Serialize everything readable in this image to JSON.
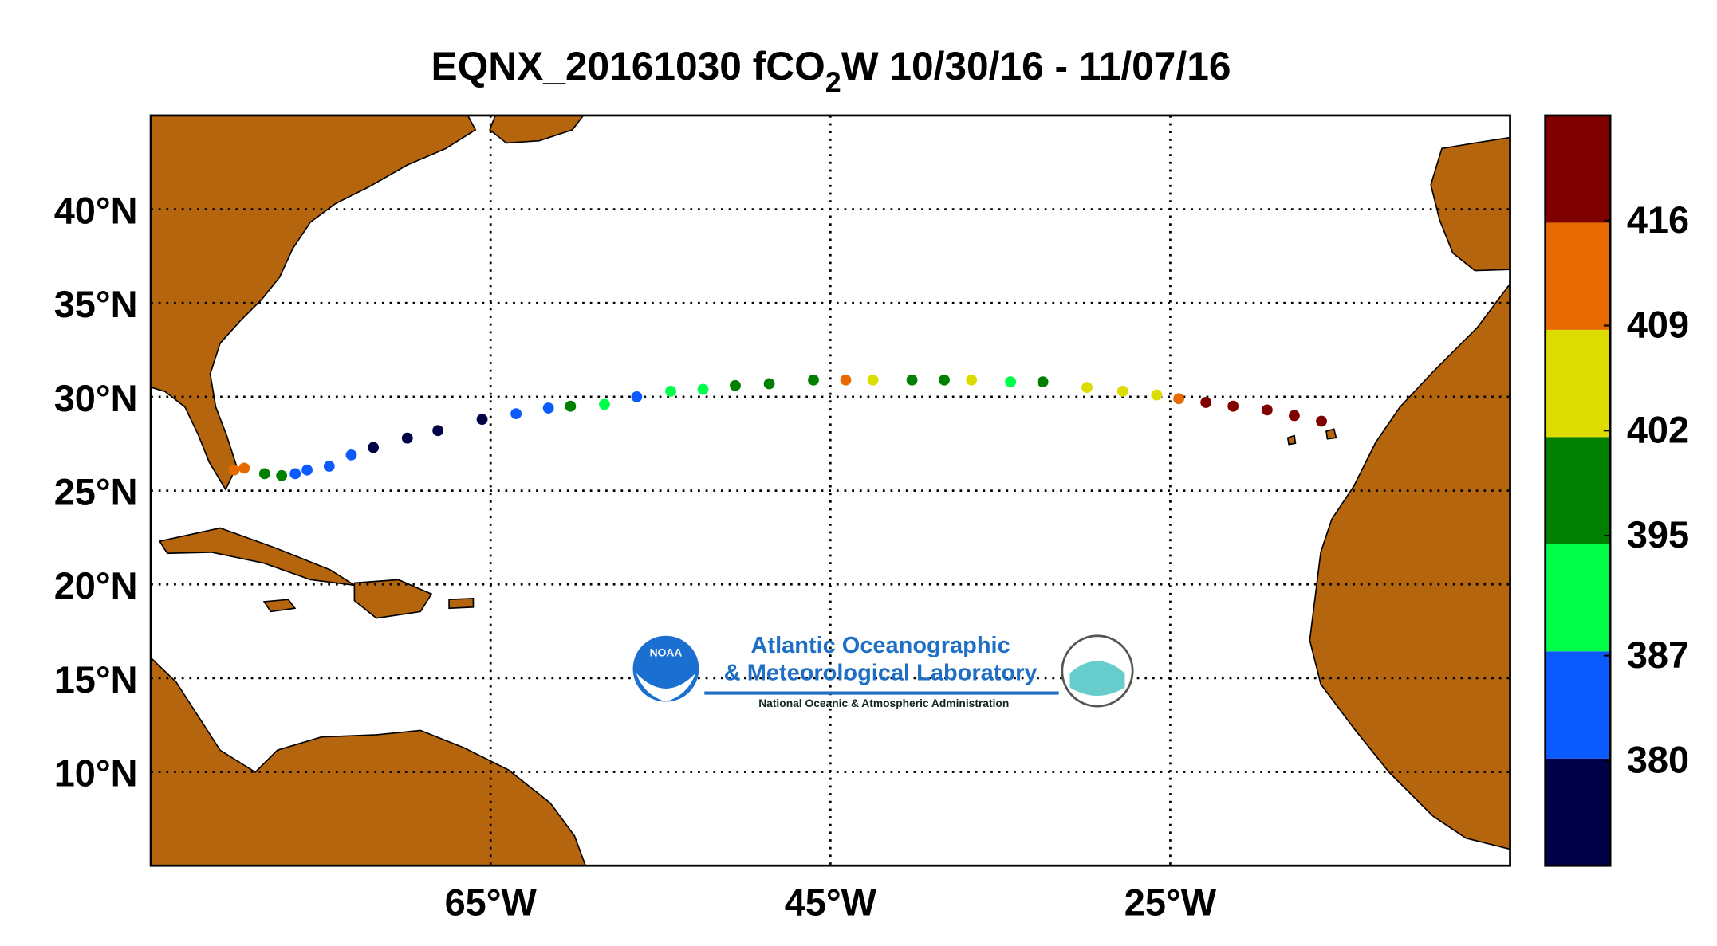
{
  "chart_data": {
    "type": "map",
    "title": {
      "prefix": "EQNX_20161030  fCO",
      "subscript": "2",
      "suffix": "W 10/30/16 - 11/07/16"
    },
    "xlim": [
      -85,
      -5
    ],
    "ylim": [
      5,
      45
    ],
    "xticks": [
      {
        "value": -65,
        "label": "65°W"
      },
      {
        "value": -45,
        "label": "45°W"
      },
      {
        "value": -25,
        "label": "25°W"
      }
    ],
    "yticks": [
      {
        "value": 10,
        "label": "10°N"
      },
      {
        "value": 15,
        "label": "15°N"
      },
      {
        "value": 20,
        "label": "20°N"
      },
      {
        "value": 25,
        "label": "25°N"
      },
      {
        "value": 30,
        "label": "30°N"
      },
      {
        "value": 35,
        "label": "35°N"
      },
      {
        "value": 40,
        "label": "40°N"
      }
    ],
    "grid": true,
    "land_color": "#b5650d",
    "lon": [
      -80.1,
      -79.5,
      -78.3,
      -77.3,
      -76.5,
      -75.8,
      -74.5,
      -73.2,
      -71.9,
      -69.9,
      -68.1,
      -65.5,
      -63.5,
      -61.6,
      -60.3,
      -58.3,
      -56.4,
      -54.4,
      -52.5,
      -50.6,
      -48.6,
      -46.0,
      -44.1,
      -42.5,
      -40.2,
      -38.3,
      -36.7,
      -34.4,
      -32.5,
      -29.9,
      -27.8,
      -25.8,
      -24.5,
      -22.9,
      -21.3,
      -19.3,
      -17.7,
      -16.1
    ],
    "lat": [
      26.1,
      26.2,
      25.9,
      25.8,
      25.9,
      26.1,
      26.3,
      26.9,
      27.3,
      27.8,
      28.2,
      28.8,
      29.1,
      29.4,
      29.5,
      29.6,
      30.0,
      30.3,
      30.4,
      30.6,
      30.7,
      30.9,
      30.9,
      30.9,
      30.9,
      30.9,
      30.9,
      30.8,
      30.8,
      30.5,
      30.3,
      30.1,
      29.9,
      29.7,
      29.5,
      29.3,
      29.0,
      28.7
    ],
    "values": [
      410,
      412,
      398,
      400,
      384,
      385,
      384,
      383,
      378,
      377,
      376,
      377,
      383,
      385,
      398,
      390,
      386,
      392,
      391,
      397,
      399,
      400,
      411,
      405,
      399,
      400,
      406,
      392,
      398,
      405,
      404,
      407,
      412,
      418,
      419,
      418,
      420,
      419
    ],
    "colorbar": {
      "lim": [
        373,
        423
      ],
      "ticks": [
        380,
        387,
        395,
        402,
        409,
        416
      ],
      "colors": [
        "#000046",
        "#0a5aff",
        "#00ff48",
        "#007f00",
        "#dcdc00",
        "#e66a00",
        "#800000"
      ]
    },
    "logo": {
      "line1": "Atlantic Oceanographic",
      "line2": "& Meteorological Laboratory",
      "line3": "National Oceanic & Atmospheric Administration",
      "badge": "NOAA"
    }
  }
}
